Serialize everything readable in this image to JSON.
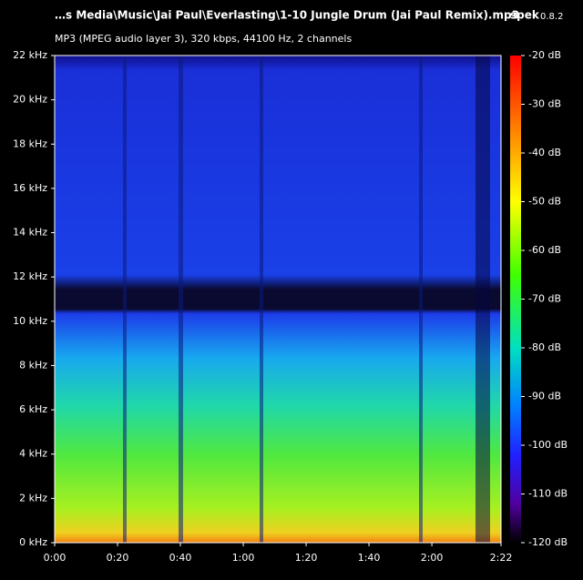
{
  "chart_data": {
    "type": "spectrogram",
    "title": "…s Media\\Music\\Jai Paul\\Everlasting\\1-10 Jungle Drum (Jai Paul Remix).mp3",
    "app_name": "spek",
    "app_version": "0.8.2",
    "subtitle": "MP3 (MPEG audio layer 3), 320 kbps, 44100 Hz, 2 channels",
    "xlim": [
      0,
      142
    ],
    "xticks": [
      {
        "value": 0,
        "label": "0:00"
      },
      {
        "value": 20,
        "label": "0:20"
      },
      {
        "value": 40,
        "label": "0:40"
      },
      {
        "value": 60,
        "label": "1:00"
      },
      {
        "value": 80,
        "label": "1:20"
      },
      {
        "value": 100,
        "label": "1:40"
      },
      {
        "value": 120,
        "label": "2:00"
      },
      {
        "value": 142,
        "label": "2:22"
      }
    ],
    "ylim": [
      0,
      22
    ],
    "yticks": [
      {
        "value": 0,
        "label": "0 kHz"
      },
      {
        "value": 2,
        "label": "2 kHz"
      },
      {
        "value": 4,
        "label": "4 kHz"
      },
      {
        "value": 6,
        "label": "6 kHz"
      },
      {
        "value": 8,
        "label": "8 kHz"
      },
      {
        "value": 10,
        "label": "10 kHz"
      },
      {
        "value": 12,
        "label": "12 kHz"
      },
      {
        "value": 14,
        "label": "14 kHz"
      },
      {
        "value": 16,
        "label": "16 kHz"
      },
      {
        "value": 18,
        "label": "18 kHz"
      },
      {
        "value": 20,
        "label": "20 kHz"
      },
      {
        "value": 22,
        "label": "22 kHz"
      }
    ],
    "colorbar_lim": [
      -120,
      -20
    ],
    "colorbar_ticks": [
      {
        "value": -20,
        "label": "-20 dB"
      },
      {
        "value": -30,
        "label": "-30 dB"
      },
      {
        "value": -40,
        "label": "-40 dB"
      },
      {
        "value": -50,
        "label": "-50 dB"
      },
      {
        "value": -60,
        "label": "-60 dB"
      },
      {
        "value": -70,
        "label": "-70 dB"
      },
      {
        "value": -80,
        "label": "-80 dB"
      },
      {
        "value": -90,
        "label": "-90 dB"
      },
      {
        "value": -100,
        "label": "-100 dB"
      },
      {
        "value": -110,
        "label": "-110 dB"
      },
      {
        "value": -120,
        "label": "-120 dB"
      }
    ]
  }
}
